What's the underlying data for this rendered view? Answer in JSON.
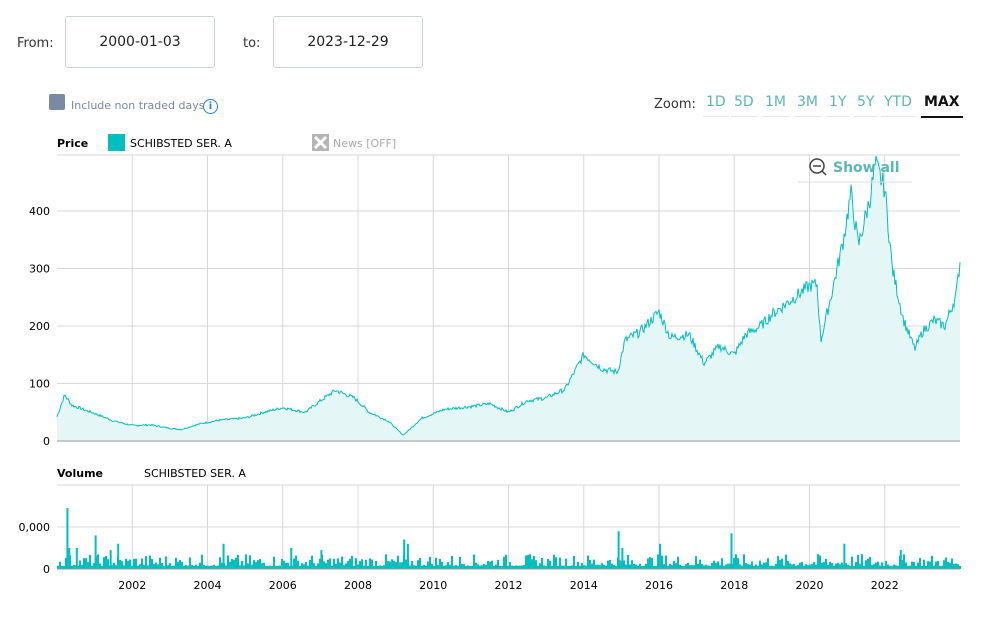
{
  "range": {
    "from_label": "From:",
    "from": "2000-01-03",
    "to_label": "to:",
    "to": "2023-12-29"
  },
  "options": {
    "non_traded_label": "Include non traded days",
    "info_icon": "i"
  },
  "zoom": {
    "label": "Zoom:",
    "buttons": [
      "1D",
      "5D",
      "1M",
      "3M",
      "1Y",
      "5Y",
      "YTD",
      "MAX"
    ],
    "active": "MAX"
  },
  "legend": {
    "price_label": "Price",
    "series_name": "SCHIBSTED SER. A",
    "news_label": "News [OFF]",
    "volume_label": "Volume",
    "volume_series": "SCHIBSTED SER. A",
    "show_all": "Show all"
  },
  "colors": {
    "series": "#00bfbf",
    "fill": "#e4f7f6",
    "grid": "#d8d8d8"
  },
  "chart_data": [
    {
      "type": "area",
      "title": "Price",
      "series_name": "SCHIBSTED SER. A",
      "xlim": [
        2000.0,
        2024.0
      ],
      "ylim": [
        0,
        495
      ],
      "yticks": [
        0,
        100,
        200,
        300,
        400
      ],
      "xticks": [
        2002,
        2004,
        2006,
        2008,
        2010,
        2012,
        2014,
        2016,
        2018,
        2020,
        2022
      ],
      "x": [
        2000.0,
        2000.2,
        2000.4,
        2000.7,
        2001.0,
        2001.5,
        2002.0,
        2002.5,
        2003.0,
        2003.3,
        2003.8,
        2004.3,
        2005.0,
        2005.5,
        2006.0,
        2006.6,
        2007.0,
        2007.4,
        2007.9,
        2008.3,
        2008.8,
        2009.2,
        2009.7,
        2010.3,
        2011.0,
        2011.5,
        2012.0,
        2012.5,
        2013.0,
        2013.5,
        2014.0,
        2014.5,
        2014.9,
        2015.1,
        2015.5,
        2016.0,
        2016.3,
        2016.8,
        2017.2,
        2017.6,
        2018.0,
        2018.3,
        2018.7,
        2019.0,
        2019.5,
        2020.0,
        2020.2,
        2020.3,
        2020.6,
        2020.9,
        2021.1,
        2021.3,
        2021.6,
        2021.75,
        2022.0,
        2022.2,
        2022.5,
        2022.8,
        2023.0,
        2023.3,
        2023.6,
        2023.9,
        2024.0
      ],
      "y": [
        42,
        80,
        62,
        55,
        48,
        35,
        27,
        28,
        22,
        20,
        30,
        36,
        40,
        50,
        58,
        50,
        70,
        88,
        75,
        50,
        35,
        10,
        40,
        55,
        60,
        65,
        50,
        70,
        75,
        90,
        150,
        125,
        120,
        175,
        190,
        225,
        180,
        185,
        135,
        165,
        150,
        185,
        200,
        220,
        245,
        270,
        272,
        175,
        260,
        350,
        430,
        340,
        420,
        480,
        440,
        300,
        210,
        160,
        190,
        210,
        200,
        255,
        312
      ]
    },
    {
      "type": "bar",
      "title": "Volume",
      "series_name": "SCHIBSTED SER. A",
      "xlim": [
        2000.0,
        2024.0
      ],
      "yticks": [
        "0",
        "0,000"
      ],
      "spikes_x": [
        2000.25,
        2000.3,
        2000.5,
        2001.0,
        2001.4,
        2001.6,
        2004.4,
        2006.2,
        2007.0,
        2009.2,
        2009.3,
        2014.9,
        2015.0,
        2016.0,
        2017.9,
        2020.9,
        2022.4
      ],
      "spikes_rel": [
        1.45,
        0.5,
        0.5,
        0.8,
        0.45,
        0.6,
        0.6,
        0.5,
        0.45,
        0.7,
        0.6,
        0.9,
        0.5,
        0.6,
        0.85,
        0.6,
        0.45
      ]
    }
  ]
}
